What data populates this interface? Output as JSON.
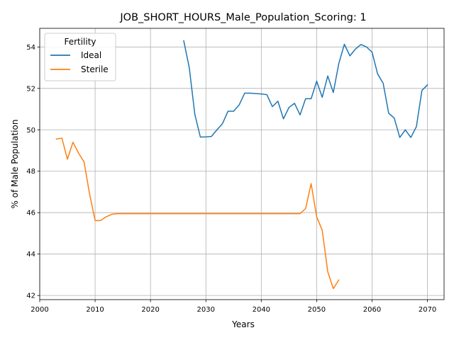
{
  "chart_data": {
    "type": "line",
    "title": "JOB_SHORT_HOURS_Male_Population_Scoring: 1",
    "xlabel": "Years",
    "ylabel": "% of Male Population",
    "xlim": [
      2000,
      2073
    ],
    "ylim": [
      41.8,
      54.9
    ],
    "x_ticks": [
      2000,
      2010,
      2020,
      2030,
      2040,
      2050,
      2060,
      2070
    ],
    "y_ticks": [
      42,
      44,
      46,
      48,
      50,
      52,
      54
    ],
    "grid": true,
    "legend": {
      "title": "Fertility",
      "position": "top-left"
    },
    "series": [
      {
        "name": "Ideal",
        "color": "#1f77b4",
        "x": [
          2026,
          2027,
          2028,
          2029,
          2030,
          2031,
          2032,
          2033,
          2034,
          2035,
          2036,
          2037,
          2038,
          2039,
          2040,
          2041,
          2042,
          2043,
          2044,
          2045,
          2046,
          2047,
          2048,
          2049,
          2050,
          2051,
          2052,
          2053,
          2054,
          2055,
          2056,
          2057,
          2058,
          2059,
          2060,
          2061,
          2062,
          2063,
          2064,
          2065,
          2066,
          2067,
          2068,
          2069,
          2070
        ],
        "y": [
          54.3,
          53.0,
          50.75,
          49.65,
          49.66,
          49.68,
          50.0,
          50.3,
          50.9,
          50.9,
          51.2,
          51.77,
          51.77,
          51.75,
          51.73,
          51.7,
          51.12,
          51.38,
          50.53,
          51.08,
          51.28,
          50.72,
          51.5,
          51.5,
          52.35,
          51.57,
          52.6,
          51.8,
          53.2,
          54.13,
          53.57,
          53.9,
          54.12,
          54.0,
          53.75,
          52.7,
          52.25,
          50.8,
          50.57,
          49.63,
          50.0,
          49.63,
          50.15,
          51.9,
          52.17
        ]
      },
      {
        "name": "Sterile",
        "color": "#ff7f0e",
        "x": [
          2003,
          2004,
          2005,
          2006,
          2007,
          2008,
          2009,
          2010,
          2011,
          2012,
          2013,
          2014,
          2015,
          2016,
          2017,
          2018,
          2019,
          2020,
          2021,
          2022,
          2023,
          2024,
          2025,
          2026,
          2027,
          2028,
          2029,
          2030,
          2031,
          2032,
          2033,
          2034,
          2035,
          2036,
          2037,
          2038,
          2039,
          2040,
          2041,
          2042,
          2043,
          2044,
          2045,
          2046,
          2047,
          2048,
          2049,
          2050,
          2051,
          2052,
          2053,
          2054
        ],
        "y": [
          49.55,
          49.6,
          48.58,
          49.4,
          48.88,
          48.45,
          46.9,
          45.62,
          45.62,
          45.8,
          45.92,
          45.95,
          45.95,
          45.95,
          45.95,
          45.95,
          45.95,
          45.95,
          45.95,
          45.95,
          45.95,
          45.95,
          45.95,
          45.95,
          45.95,
          45.95,
          45.95,
          45.95,
          45.95,
          45.95,
          45.95,
          45.95,
          45.95,
          45.95,
          45.95,
          45.95,
          45.95,
          45.95,
          45.95,
          45.95,
          45.95,
          45.95,
          45.95,
          45.95,
          45.95,
          46.2,
          47.4,
          45.8,
          45.15,
          43.15,
          42.33,
          42.75
        ]
      }
    ]
  }
}
